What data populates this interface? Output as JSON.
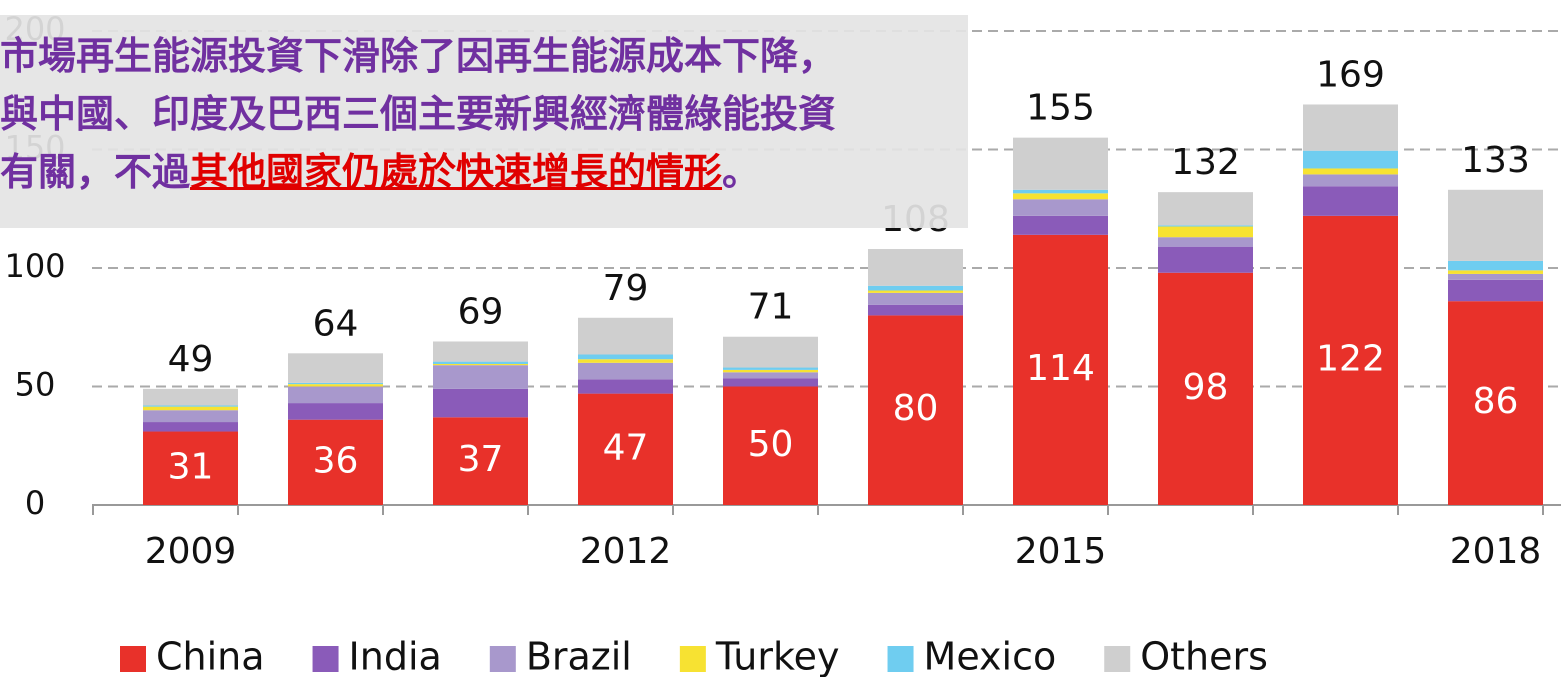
{
  "chart_data": {
    "type": "stacked_bar",
    "annotation": [
      "市場再生能源投資下滑除了因再生能源成本下降，",
      "與中國、印度及巴西三個主要新興經濟體綠能投資",
      "有關，不過",
      "其他國家仍處於快速增長的情形",
      "。"
    ],
    "categories": [
      "2009",
      null,
      null,
      "2012",
      null,
      null,
      "2015",
      null,
      null,
      "2018"
    ],
    "series": [
      {
        "name": "China",
        "color": "#e8312a",
        "values": [
          31,
          36,
          37,
          47,
          50,
          80,
          114,
          98,
          122,
          86
        ]
      },
      {
        "name": "India",
        "color": "#8a5bb9",
        "values": [
          4,
          7,
          12,
          6,
          3.5,
          4.5,
          8,
          11,
          12.5,
          9
        ]
      },
      {
        "name": "Brazil",
        "color": "#a898cc",
        "values": [
          5,
          7,
          10,
          7,
          2.5,
          5,
          7,
          4,
          5,
          2.5
        ]
      },
      {
        "name": "Turkey",
        "color": "#f7e232",
        "values": [
          1.5,
          1,
          0.5,
          1.5,
          1,
          1,
          2.5,
          4.5,
          2.5,
          1.5
        ]
      },
      {
        "name": "Mexico",
        "color": "#6fcdf0",
        "values": [
          0.5,
          0.5,
          1,
          2,
          1,
          2,
          1.5,
          0.5,
          7.5,
          4
        ]
      },
      {
        "name": "Others",
        "color": "#cfcfcf",
        "values": [
          7,
          12.5,
          8.5,
          15.5,
          13,
          15.5,
          22,
          14,
          19.5,
          30
        ]
      }
    ],
    "totals": [
      49,
      64,
      69,
      79,
      71,
      108,
      155,
      132,
      169,
      133
    ],
    "ylim": [
      0,
      200
    ],
    "yticks": [
      0,
      50,
      100,
      150,
      200
    ],
    "grid": true
  }
}
